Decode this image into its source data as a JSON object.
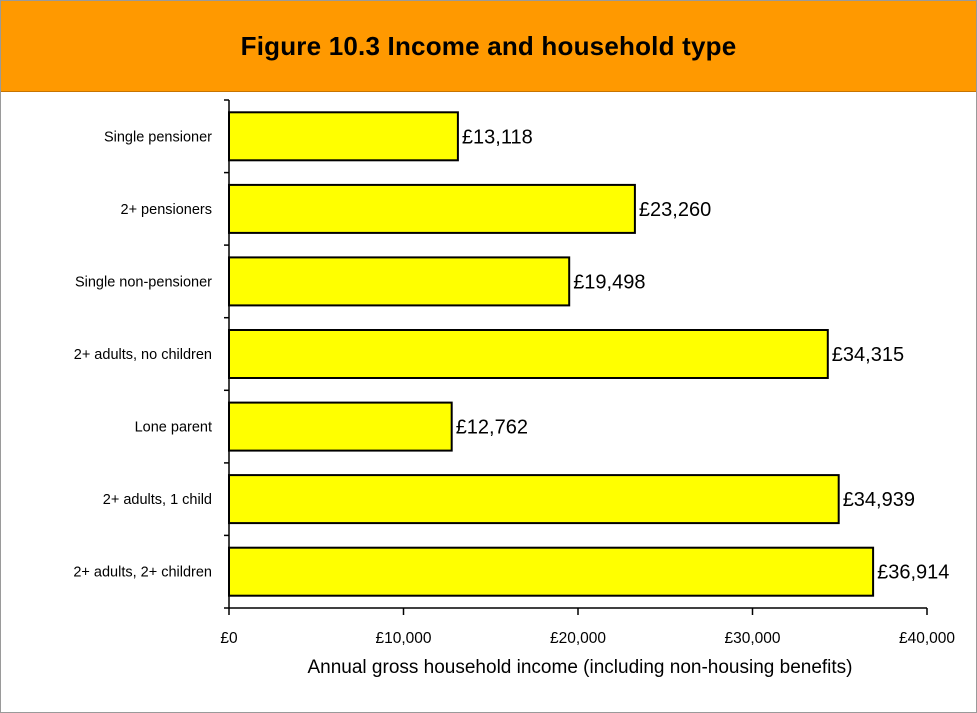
{
  "title": "Figure 10.3 Income and household type",
  "colors": {
    "header": "#ff9900",
    "bar_fill": "#ffff00",
    "bar_stroke": "#000000"
  },
  "chart_data": {
    "type": "bar",
    "orientation": "horizontal",
    "title": "Figure 10.3 Income and household type",
    "xlabel": "Annual gross household income (including non-housing benefits)",
    "ylabel": "",
    "xlim": [
      0,
      40000
    ],
    "grid": false,
    "legend": "none",
    "categories": [
      "Single pensioner",
      "2+ pensioners",
      "Single non-pensioner",
      "2+ adults, no children",
      "Lone parent",
      "2+ adults, 1 child",
      "2+ adults, 2+ children"
    ],
    "values": [
      13118,
      23260,
      19498,
      34315,
      12762,
      34939,
      36914
    ],
    "value_labels": [
      "£13,118",
      "£23,260",
      "£19,498",
      "£34,315",
      "£12,762",
      "£34,939",
      "£36,914"
    ],
    "x_ticks": [
      0,
      10000,
      20000,
      30000,
      40000
    ],
    "x_tick_labels": [
      "£0",
      "£10,000",
      "£20,000",
      "£30,000",
      "£40,000"
    ]
  }
}
